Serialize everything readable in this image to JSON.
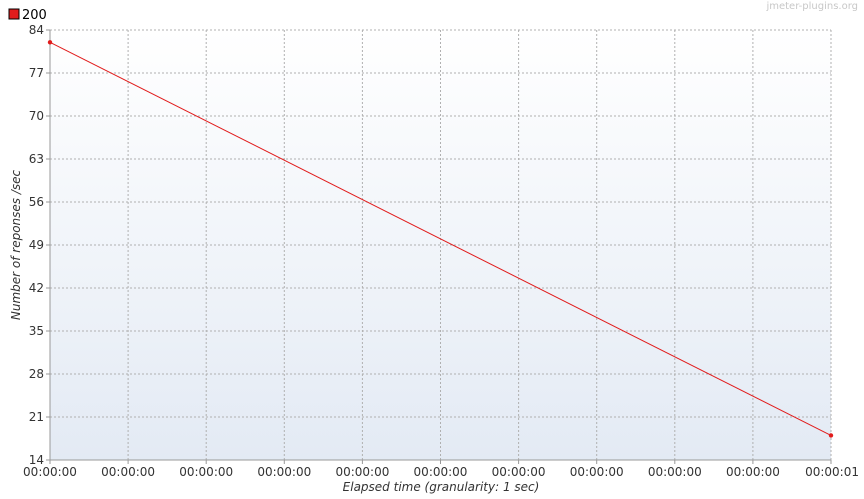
{
  "watermark": "jmeter-plugins.org",
  "chart_data": {
    "type": "line",
    "xlabel": "Elapsed time (granularity: 1 sec)",
    "ylabel": "Number of reponses /sec",
    "ylim": [
      14,
      84
    ],
    "yticks": [
      84,
      77,
      70,
      63,
      56,
      49,
      42,
      35,
      28,
      21,
      14
    ],
    "xlim": [
      0,
      1
    ],
    "xtick_labels": [
      "00:00:00",
      "00:00:00",
      "00:00:00",
      "00:00:00",
      "00:00:00",
      "00:00:00",
      "00:00:00",
      "00:00:00",
      "00:00:00",
      "00:00:00",
      "00:00:01"
    ],
    "grid": true,
    "legend_position": "top-left",
    "series": [
      {
        "name": "200",
        "color": "#e11b1b",
        "x": [
          0,
          1
        ],
        "y": [
          82,
          18
        ]
      }
    ]
  }
}
